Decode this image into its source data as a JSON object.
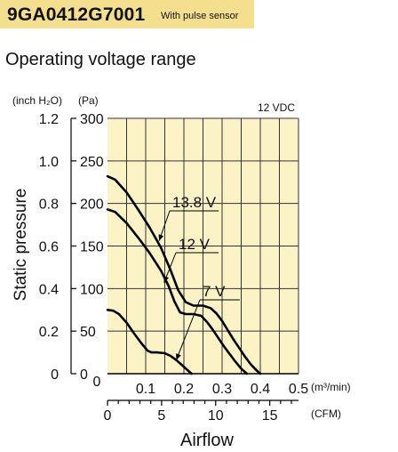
{
  "header": {
    "model": "9GA0412G7001",
    "subtitle": "With pulse sensor"
  },
  "section_title": "Operating voltage range",
  "colors": {
    "header_band": "#f4df8f",
    "plot_background": "#fbf2c6",
    "curve": "#000000"
  },
  "chart_data": {
    "type": "line",
    "title": "",
    "annotation": "12 VDC",
    "ylabel": "Static pressure",
    "xlabel": "Airflow",
    "y_units": {
      "inch": "(inch H₂O)",
      "pa": "(Pa)"
    },
    "x_units": {
      "m3": "(m³/min)",
      "cfm": "(CFM)"
    },
    "y_pa_ticks": [
      "0",
      "50",
      "100",
      "150",
      "200",
      "250",
      "300"
    ],
    "y_inch_ticks": [
      "0",
      "0.2",
      "0.4",
      "0.6",
      "0.8",
      "1.0",
      "1.2"
    ],
    "x_m3_ticks": [
      "0",
      "0.1",
      "0.2",
      "0.3",
      "0.4",
      "0.5"
    ],
    "x_cfm_ticks": [
      "0",
      "5",
      "10",
      "15"
    ],
    "xlim": [
      0,
      0.5
    ],
    "ylim": [
      0,
      300
    ],
    "grid": true,
    "series": [
      {
        "name": "13.8 V",
        "x": [
          0,
          0.02,
          0.05,
          0.08,
          0.11,
          0.14,
          0.165,
          0.185,
          0.205,
          0.225,
          0.25,
          0.27,
          0.285,
          0.3,
          0.315,
          0.33,
          0.345,
          0.36,
          0.375,
          0.39,
          0.4
        ],
        "y": [
          232,
          228,
          213,
          193,
          172,
          148,
          122,
          98,
          84,
          80,
          80,
          77,
          71,
          62,
          51,
          40,
          30,
          20,
          11,
          4,
          0
        ]
      },
      {
        "name": "12 V",
        "x": [
          0,
          0.02,
          0.05,
          0.08,
          0.11,
          0.14,
          0.16,
          0.175,
          0.19,
          0.205,
          0.225,
          0.245,
          0.26,
          0.275,
          0.29,
          0.305,
          0.32,
          0.335,
          0.35,
          0.365
        ],
        "y": [
          193,
          190,
          177,
          160,
          142,
          121,
          103,
          85,
          72,
          70,
          70,
          68,
          61,
          52,
          42,
          32,
          23,
          14,
          6,
          0
        ]
      },
      {
        "name": "7 V",
        "x": [
          0,
          0.015,
          0.03,
          0.05,
          0.07,
          0.09,
          0.105,
          0.115,
          0.13,
          0.15,
          0.165,
          0.18,
          0.195,
          0.21,
          0.22
        ],
        "y": [
          75,
          74,
          70,
          60,
          47,
          35,
          27,
          25,
          25,
          24,
          21,
          16,
          10,
          4,
          0
        ]
      }
    ],
    "labels": {
      "s138": "13.8 V",
      "s12": "12 V",
      "s7": "7 V"
    }
  }
}
